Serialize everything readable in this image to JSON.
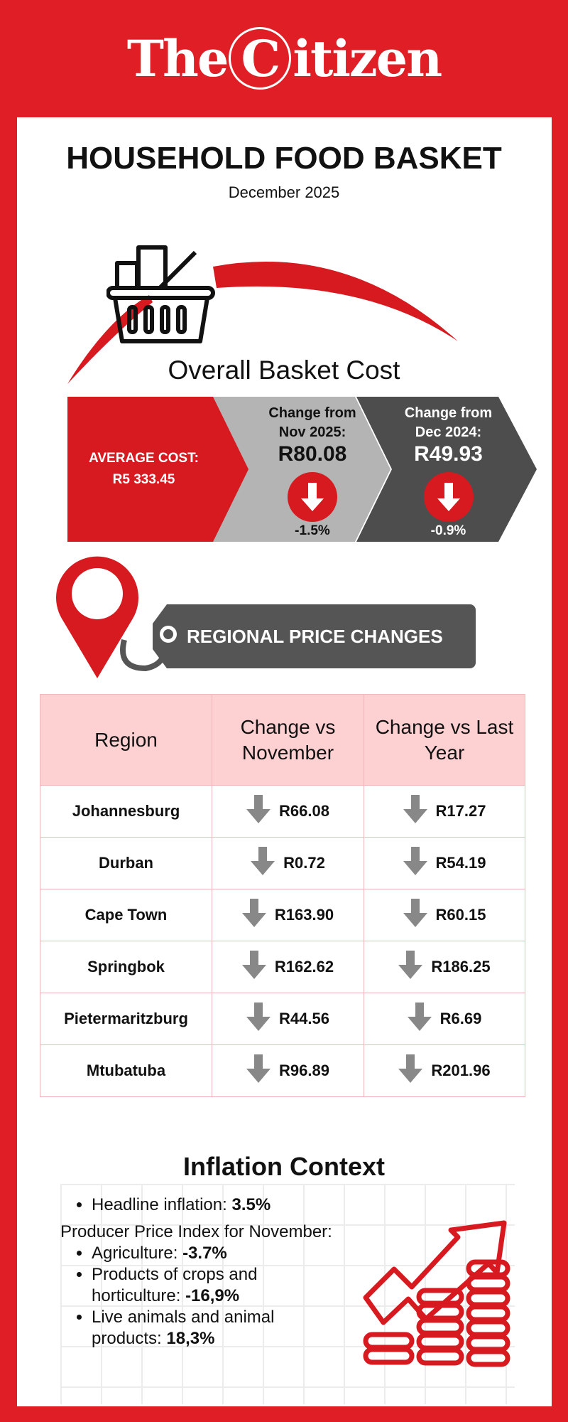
{
  "logo": {
    "text_left": "The",
    "text_c": "C",
    "text_right": "itizen"
  },
  "header": {
    "title": "HOUSEHOLD FOOD BASKET",
    "date": "December 2025"
  },
  "overall": {
    "heading": "Overall Basket Cost",
    "average_label": "AVERAGE COST:",
    "average_value": "R5 333.45",
    "nov": {
      "label1": "Change from",
      "label2": "Nov 2025:",
      "value": "R80.08",
      "pct": "-1.5%"
    },
    "dec": {
      "label1": "Change from",
      "label2": "Dec 2024:",
      "value": "R49.93",
      "pct": "-0.9%"
    }
  },
  "regional": {
    "tag": "REGIONAL PRICE CHANGES",
    "headers": [
      "Region",
      "Change vs November",
      "Change vs Last Year"
    ],
    "rows": [
      {
        "region": "Johannesburg",
        "nov": "R66.08",
        "year": "R17.27"
      },
      {
        "region": "Durban",
        "nov": "R0.72",
        "year": "R54.19"
      },
      {
        "region": "Cape Town",
        "nov": "R163.90",
        "year": "R60.15"
      },
      {
        "region": "Springbok",
        "nov": "R162.62",
        "year": "R186.25"
      },
      {
        "region": "Pietermaritzburg",
        "nov": "R44.56",
        "year": "R6.69"
      },
      {
        "region": "Mtubatuba",
        "nov": "R96.89",
        "year": "R201.96"
      }
    ]
  },
  "inflation": {
    "title": "Inflation Context",
    "headline_label": "Headline inflation: ",
    "headline_value": "3.5%",
    "ppi_label": "Producer Price Index for November:",
    "items": [
      {
        "label": "Agriculture: ",
        "value": "-3.7%"
      },
      {
        "label": "Products of crops and horticulture: ",
        "value": "-16,9%"
      },
      {
        "label": "Live animals and animal products: ",
        "value": "18,3%"
      }
    ]
  },
  "colors": {
    "brand_red": "#e01e26",
    "dark_gray": "#4d4d4d",
    "light_gray": "#b4b4b4",
    "table_header": "#fdd0d2"
  }
}
